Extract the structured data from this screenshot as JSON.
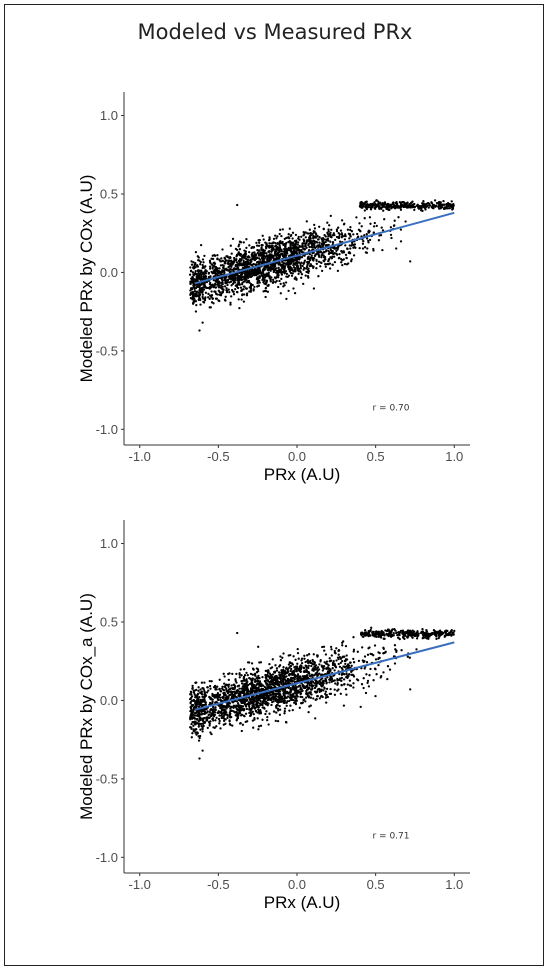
{
  "figure": {
    "title": "Modeled vs Measured PRx"
  },
  "chart_data": [
    {
      "type": "scatter",
      "xlabel": "PRx (A.U)",
      "ylabel": "Modeled PRx by COx (A.U)",
      "xlim": [
        -1.1,
        1.1
      ],
      "ylim": [
        -1.1,
        1.15
      ],
      "xticks": [
        "-1.0",
        "-0.5",
        "0.0",
        "0.5",
        "1.0"
      ],
      "yticks": [
        "-1.0",
        "-0.5",
        "0.0",
        "0.5",
        "1.0"
      ],
      "annotation": "r = 0.70",
      "fit_line": {
        "x": [
          -0.65,
          1.0
        ],
        "y": [
          -0.07,
          0.38
        ],
        "color": "#3a6fbf"
      },
      "point_color": "#000000",
      "grid": false,
      "n_points_approx": 2500
    },
    {
      "type": "scatter",
      "xlabel": "PRx (A.U)",
      "ylabel": "Modeled PRx by COx_a (A.U)",
      "xlim": [
        -1.1,
        1.1
      ],
      "ylim": [
        -1.1,
        1.15
      ],
      "xticks": [
        "-1.0",
        "-0.5",
        "0.0",
        "0.5",
        "1.0"
      ],
      "yticks": [
        "-1.0",
        "-0.5",
        "0.0",
        "0.5",
        "1.0"
      ],
      "annotation": "r = 0.71",
      "fit_line": {
        "x": [
          -0.65,
          1.0
        ],
        "y": [
          -0.06,
          0.37
        ],
        "color": "#3a6fbf"
      },
      "point_color": "#000000",
      "grid": false,
      "n_points_approx": 2500
    }
  ]
}
